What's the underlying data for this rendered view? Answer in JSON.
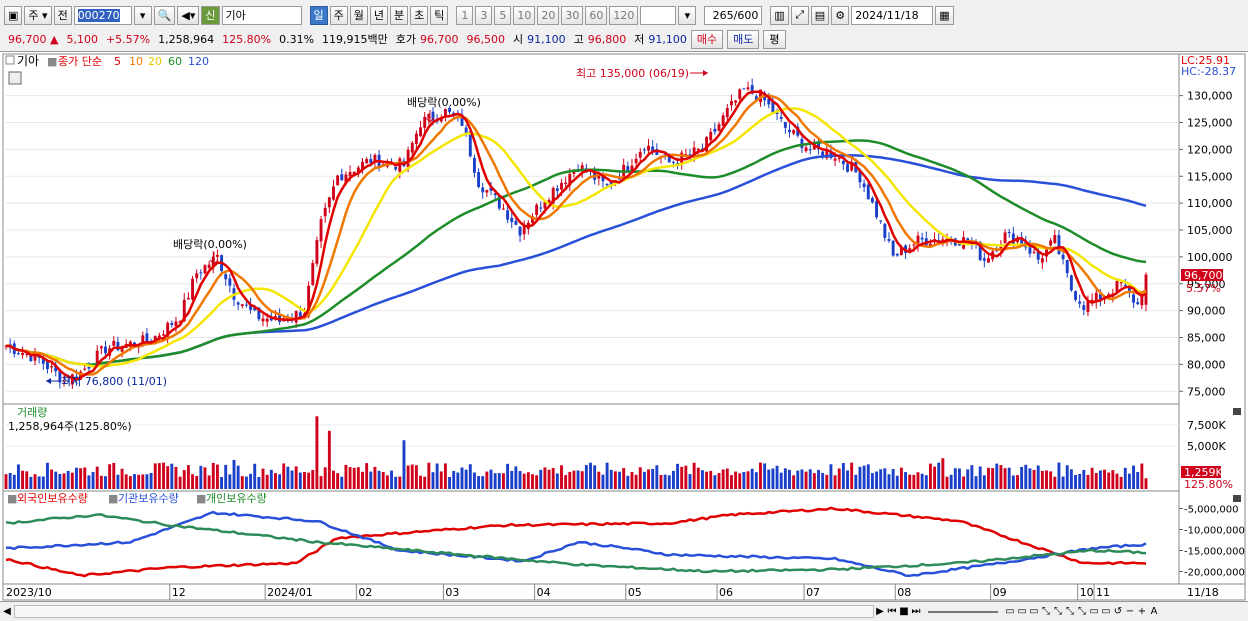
{
  "toolbar": {
    "type_label": "주",
    "prev_label": "전",
    "code": "000270",
    "name_badge": "신",
    "name": "기아",
    "periods": [
      "일",
      "주",
      "월",
      "년",
      "분",
      "초",
      "틱"
    ],
    "active_period": "일",
    "intervals": [
      "1",
      "3",
      "5",
      "10",
      "20",
      "30",
      "60",
      "120"
    ],
    "count": "265",
    "count_total": "/600",
    "date": "2024/11/18"
  },
  "quote": {
    "price": "96,700",
    "change_arrow": "▲",
    "change": "5,100",
    "change_pct": "+5.57%",
    "volume": "1,258,964",
    "volume_ratio": "125.80%",
    "turnover": "0.31%",
    "amount": "119,915백만",
    "ask_label": "호가",
    "ask": "96,700",
    "bid": "96,500",
    "open_label": "시",
    "open": "91,100",
    "high_label": "고",
    "high": "96,800",
    "low_label": "저",
    "low": "91,100",
    "buy_label": "매수",
    "sell_label": "매도",
    "eval_label": "평"
  },
  "colors": {
    "up": "#d0021b",
    "down": "#1a3fc8",
    "ma5": "#e00000",
    "ma10": "#f07800",
    "ma20": "#f5e600",
    "ma60": "#1e8c28",
    "ma120": "#2850d8",
    "foreign": "#e00000",
    "institution": "#2850d8",
    "individual": "#2e8b57"
  },
  "chart_data": [
    {
      "type": "candlestick",
      "title": "기아",
      "legend": [
        "종가 단순",
        "5",
        "10",
        "20",
        "60",
        "120"
      ],
      "ylim": [
        73000,
        137000
      ],
      "y_ticks": [
        "130,000",
        "125,000",
        "120,000",
        "115,000",
        "110,000",
        "105,000",
        "100,000",
        "95,000",
        "90,000",
        "85,000",
        "80,000",
        "75,000"
      ],
      "x_labels": [
        "2023/10",
        "12",
        "2024/01",
        "02",
        "03",
        "04",
        "05",
        "06",
        "07",
        "08",
        "09",
        "10",
        "11",
        "11/18"
      ],
      "annotations": {
        "high": "최고 135,000 (06/19)",
        "low": "최저 76,800 (11/01)",
        "dividend1": "배당락(0.00%)",
        "dividend2": "배당락(0.00%)",
        "lc": "LC:25.91",
        "hc": "HC:-28.37",
        "last_price": "96,700",
        "last_pct": "5.57%"
      },
      "close_anchors": [
        [
          0,
          83500
        ],
        [
          8,
          81000
        ],
        [
          14,
          77000
        ],
        [
          18,
          78500
        ],
        [
          24,
          83000
        ],
        [
          35,
          84500
        ],
        [
          42,
          89000
        ],
        [
          46,
          97000
        ],
        [
          51,
          100000
        ],
        [
          55,
          93000
        ],
        [
          60,
          89000
        ],
        [
          66,
          88000
        ],
        [
          72,
          90000
        ],
        [
          76,
          106000
        ],
        [
          80,
          115000
        ],
        [
          88,
          118000
        ],
        [
          96,
          117000
        ],
        [
          100,
          125000
        ],
        [
          106,
          127000
        ],
        [
          110,
          125000
        ],
        [
          114,
          114000
        ],
        [
          120,
          109000
        ],
        [
          124,
          105000
        ],
        [
          130,
          111000
        ],
        [
          138,
          117000
        ],
        [
          145,
          113000
        ],
        [
          150,
          117000
        ],
        [
          154,
          121000
        ],
        [
          160,
          117500
        ],
        [
          168,
          120000
        ],
        [
          174,
          127000
        ],
        [
          178,
          131000
        ],
        [
          182,
          130000
        ],
        [
          188,
          124000
        ],
        [
          194,
          120000
        ],
        [
          200,
          119000
        ],
        [
          206,
          115000
        ],
        [
          210,
          108000
        ],
        [
          214,
          100000
        ],
        [
          220,
          103000
        ],
        [
          226,
          103500
        ],
        [
          232,
          103000
        ],
        [
          236,
          99500
        ],
        [
          241,
          104000
        ],
        [
          245,
          103000
        ],
        [
          249,
          99500
        ],
        [
          253,
          103000
        ],
        [
          257,
          94000
        ],
        [
          260,
          91000
        ],
        [
          265,
          93000
        ],
        [
          269,
          95000
        ],
        [
          273,
          91000
        ],
        [
          275,
          96700
        ]
      ]
    },
    {
      "type": "bar",
      "title": "거래량",
      "value_label": "1,258,964주(125.80%)",
      "y_ticks": [
        "7,500K",
        "5,000K"
      ],
      "last_label": "1,259K",
      "last_pct": "125.80%"
    },
    {
      "type": "line",
      "legend": [
        "외국인보유수량",
        "기관보유수량",
        "개인보유수량"
      ],
      "y_ticks": [
        "-5,000,000",
        "-10,000,000",
        "-15,000,000",
        "-20,000,000"
      ],
      "ylim": [
        -22500000,
        -2500000
      ],
      "series": [
        {
          "name": "외국인보유수량",
          "anchors": [
            [
              0,
              -17000000
            ],
            [
              18,
              -21000000
            ],
            [
              40,
              -19000000
            ],
            [
              70,
              -18000000
            ],
            [
              80,
              -12000000
            ],
            [
              120,
              -9000000
            ],
            [
              160,
              -8500000
            ],
            [
              175,
              -6500000
            ],
            [
              200,
              -5000000
            ],
            [
              230,
              -8000000
            ],
            [
              260,
              -18000000
            ],
            [
              275,
              -18000000
            ]
          ]
        },
        {
          "name": "기관보유수량",
          "anchors": [
            [
              0,
              -14500000
            ],
            [
              30,
              -13000000
            ],
            [
              50,
              -6000000
            ],
            [
              75,
              -8000000
            ],
            [
              95,
              -15000000
            ],
            [
              125,
              -17500000
            ],
            [
              138,
              -13000000
            ],
            [
              150,
              -14500000
            ],
            [
              160,
              -16000000
            ],
            [
              200,
              -17000000
            ],
            [
              218,
              -21000000
            ],
            [
              240,
              -18000000
            ],
            [
              262,
              -14500000
            ],
            [
              275,
              -13500000
            ]
          ]
        },
        {
          "name": "개인보유수량",
          "anchors": [
            [
              0,
              -8500000
            ],
            [
              22,
              -6500000
            ],
            [
              40,
              -9000000
            ],
            [
              75,
              -13000000
            ],
            [
              110,
              -16000000
            ],
            [
              140,
              -18500000
            ],
            [
              170,
              -20000000
            ],
            [
              200,
              -19500000
            ],
            [
              230,
              -18000000
            ],
            [
              262,
              -15000000
            ],
            [
              275,
              -15500000
            ]
          ]
        }
      ]
    }
  ]
}
